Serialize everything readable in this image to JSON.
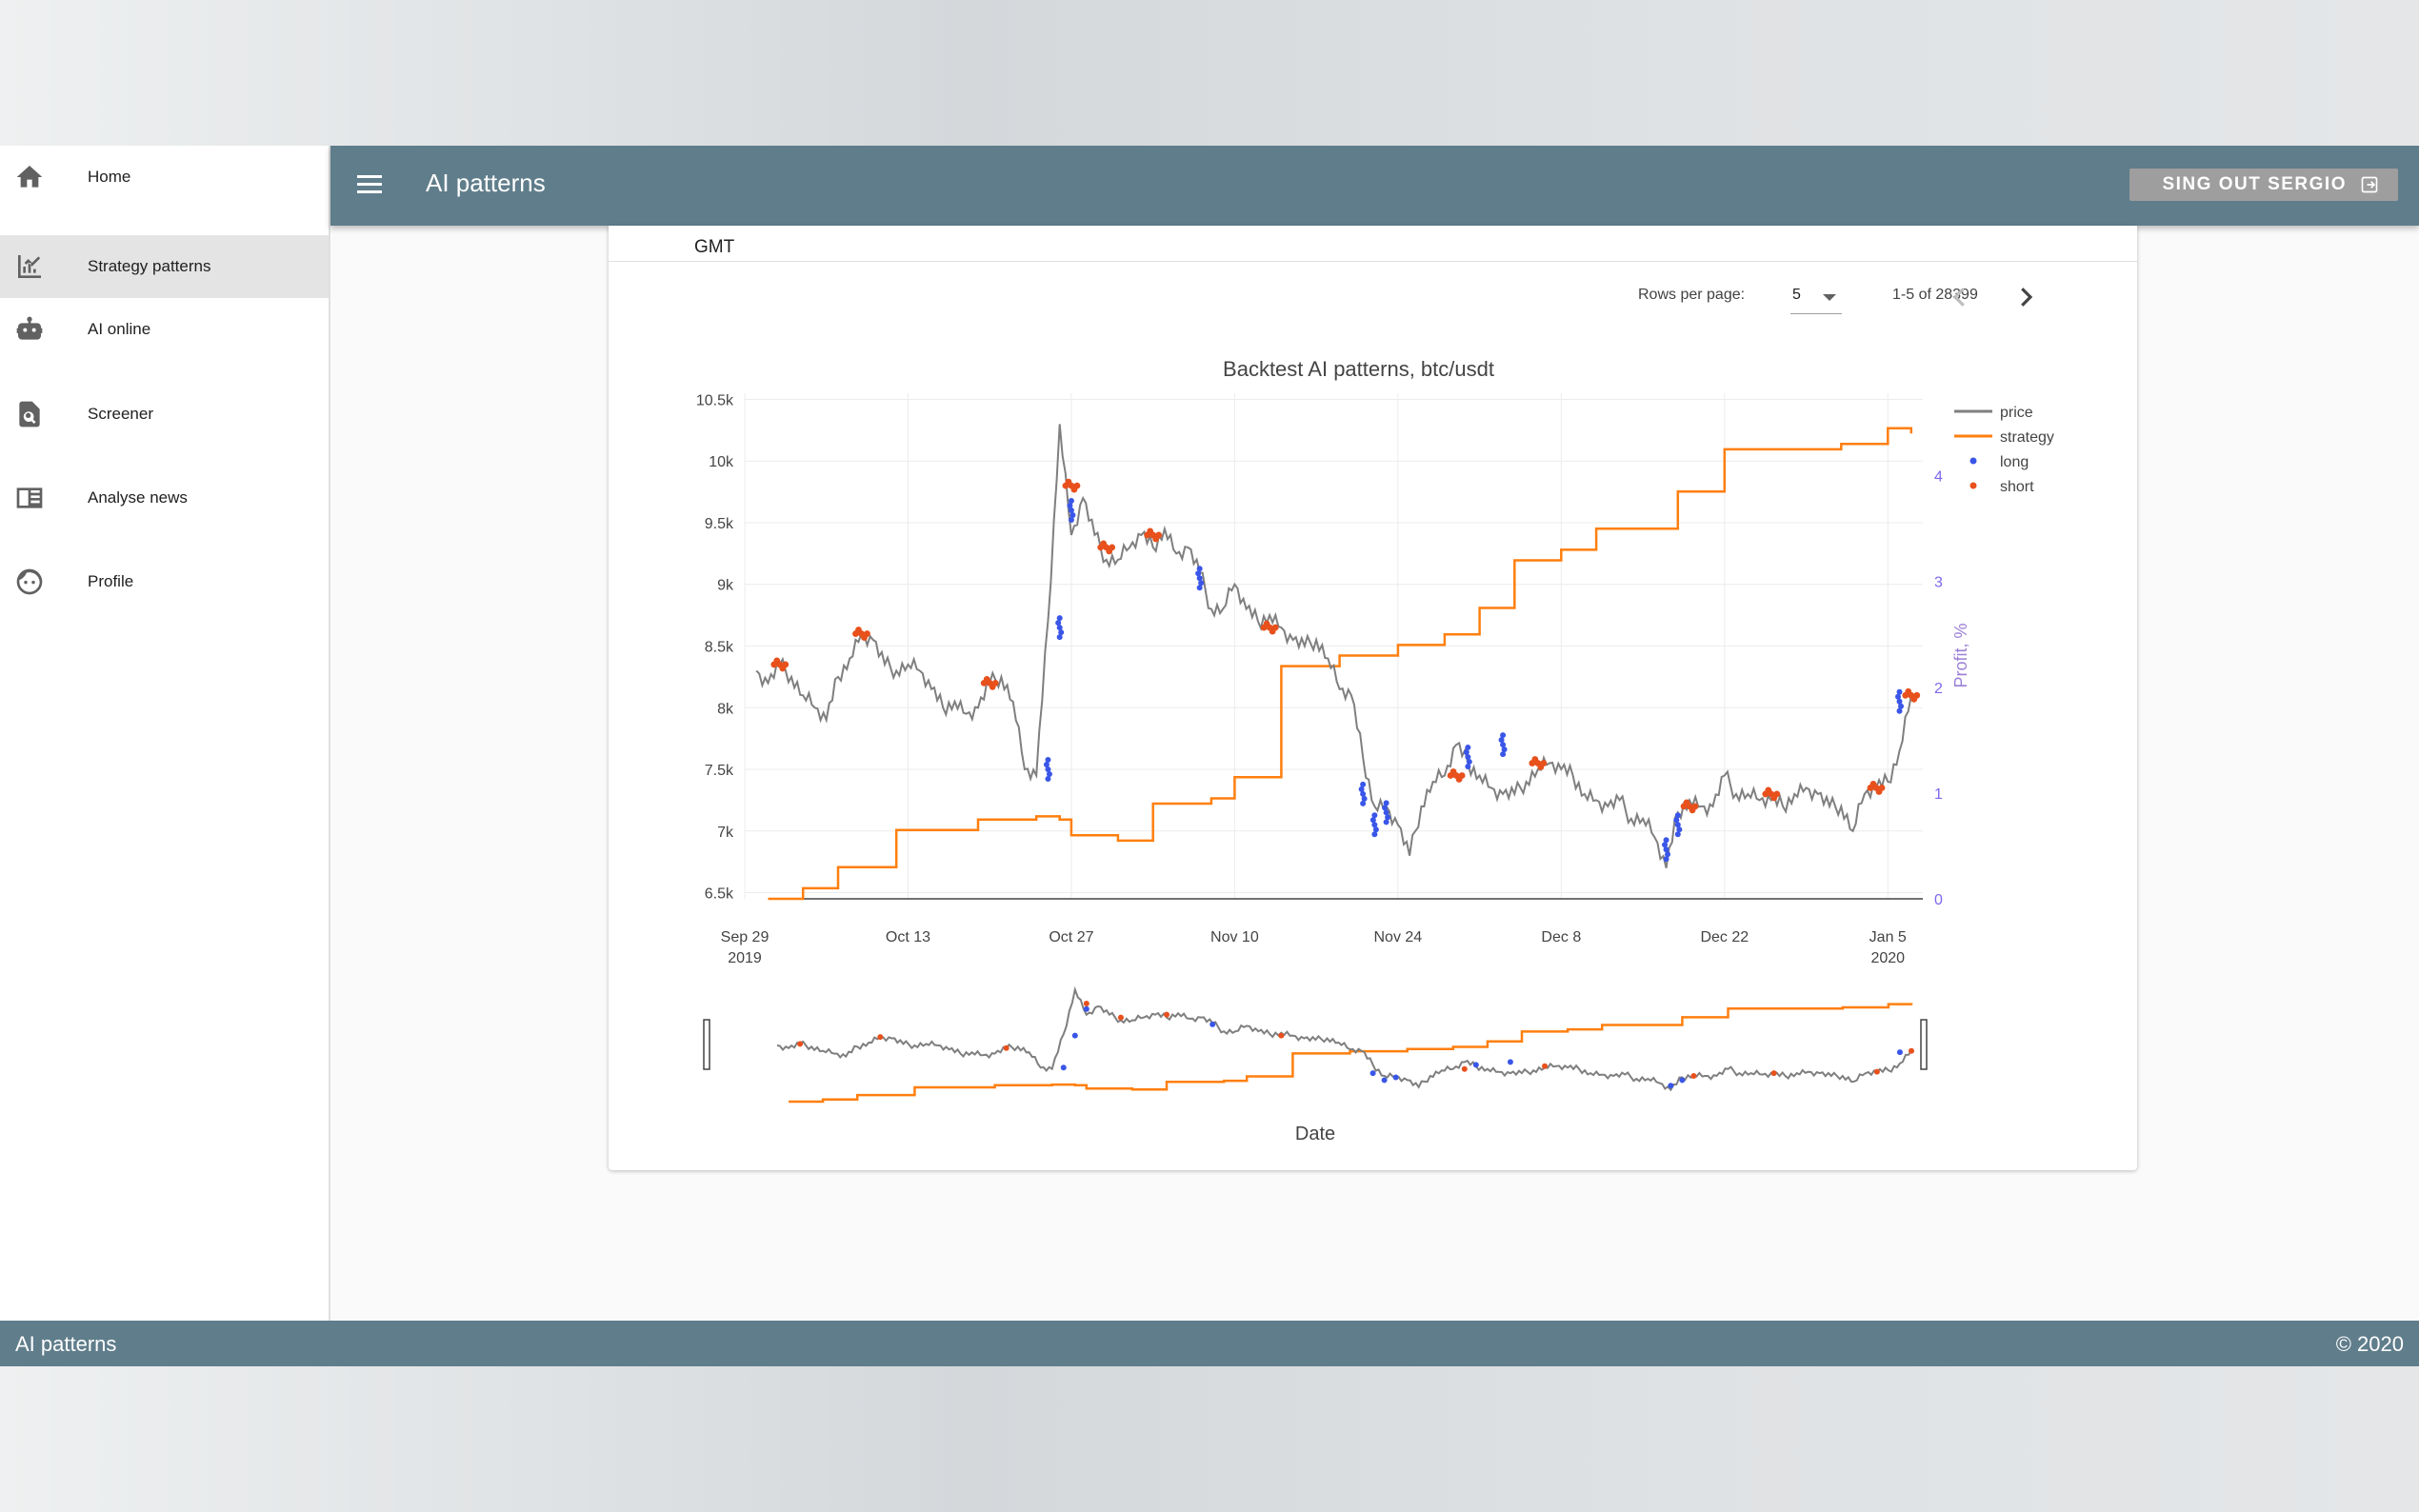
{
  "app": {
    "title": "AI patterns",
    "signout_label": "SING OUT SERGIO",
    "footer_left": "AI patterns",
    "footer_right": "© 2020",
    "header_color": "#607d8b"
  },
  "sidebar": {
    "items": [
      {
        "label": "Home",
        "icon": "home-icon",
        "active": false
      },
      {
        "label": "Strategy patterns",
        "icon": "chart-line-icon",
        "active": true
      },
      {
        "label": "AI online",
        "icon": "robot-icon",
        "active": false
      },
      {
        "label": "Screener",
        "icon": "file-search-icon",
        "active": false
      },
      {
        "label": "Analyse news",
        "icon": "newspaper-icon",
        "active": false
      },
      {
        "label": "Profile",
        "icon": "face-icon",
        "active": false
      }
    ]
  },
  "table": {
    "column_label": "GMT",
    "rows_per_page_label": "Rows per page:",
    "rows_per_page_value": "5",
    "range_label": "1-5 of 28399"
  },
  "chart_data": {
    "type": "line",
    "title": "Backtest AI patterns, btc/usdt",
    "xlabel": "Date",
    "ylabel": "",
    "y2label": "Profit, %",
    "x_tick_labels": [
      {
        "main": "Sep 29",
        "sub": "2019"
      },
      {
        "main": "Oct 13",
        "sub": ""
      },
      {
        "main": "Oct 27",
        "sub": ""
      },
      {
        "main": "Nov 10",
        "sub": ""
      },
      {
        "main": "Nov 24",
        "sub": ""
      },
      {
        "main": "Dec 8",
        "sub": ""
      },
      {
        "main": "Dec 22",
        "sub": ""
      },
      {
        "main": "Jan 5",
        "sub": "2020"
      }
    ],
    "x_range": [
      "2019-09-29",
      "2020-01-08"
    ],
    "y_tick_labels": [
      "6.5k",
      "7k",
      "7.5k",
      "8k",
      "8.5k",
      "9k",
      "9.5k",
      "10k",
      "10.5k"
    ],
    "y_ticks": [
      6500,
      7000,
      7500,
      8000,
      8500,
      9000,
      9500,
      10000,
      10500
    ],
    "ylim": [
      6450,
      10550
    ],
    "y2_ticks": [
      0,
      1,
      2,
      3,
      4
    ],
    "y2_tick_labels": [
      "0",
      "1",
      "2",
      "3",
      "4"
    ],
    "y2lim": [
      0,
      4.78
    ],
    "grid": true,
    "legend_position": "top-right",
    "range_slider": true,
    "series": [
      {
        "name": "price",
        "axis": "y",
        "color": "#7f7f7f",
        "x": [
          "2019-09-30",
          "2019-10-01",
          "2019-10-02",
          "2019-10-03",
          "2019-10-04",
          "2019-10-05",
          "2019-10-06",
          "2019-10-07",
          "2019-10-08",
          "2019-10-09",
          "2019-10-10",
          "2019-10-11",
          "2019-10-12",
          "2019-10-13",
          "2019-10-14",
          "2019-10-15",
          "2019-10-16",
          "2019-10-17",
          "2019-10-18",
          "2019-10-19",
          "2019-10-20",
          "2019-10-21",
          "2019-10-22",
          "2019-10-23",
          "2019-10-24",
          "2019-10-25",
          "2019-10-26",
          "2019-10-27",
          "2019-10-28",
          "2019-10-29",
          "2019-10-30",
          "2019-10-31",
          "2019-11-01",
          "2019-11-02",
          "2019-11-03",
          "2019-11-04",
          "2019-11-05",
          "2019-11-06",
          "2019-11-07",
          "2019-11-08",
          "2019-11-09",
          "2019-11-10",
          "2019-11-11",
          "2019-11-12",
          "2019-11-13",
          "2019-11-14",
          "2019-11-15",
          "2019-11-16",
          "2019-11-17",
          "2019-11-18",
          "2019-11-19",
          "2019-11-20",
          "2019-11-21",
          "2019-11-22",
          "2019-11-23",
          "2019-11-24",
          "2019-11-25",
          "2019-11-26",
          "2019-11-27",
          "2019-11-28",
          "2019-11-29",
          "2019-11-30",
          "2019-12-01",
          "2019-12-02",
          "2019-12-03",
          "2019-12-04",
          "2019-12-05",
          "2019-12-06",
          "2019-12-07",
          "2019-12-08",
          "2019-12-09",
          "2019-12-10",
          "2019-12-11",
          "2019-12-12",
          "2019-12-13",
          "2019-12-14",
          "2019-12-15",
          "2019-12-16",
          "2019-12-17",
          "2019-12-18",
          "2019-12-19",
          "2019-12-20",
          "2019-12-21",
          "2019-12-22",
          "2019-12-23",
          "2019-12-24",
          "2019-12-25",
          "2019-12-26",
          "2019-12-27",
          "2019-12-28",
          "2019-12-29",
          "2019-12-30",
          "2019-12-31",
          "2020-01-01",
          "2020-01-02",
          "2020-01-03",
          "2020-01-04",
          "2020-01-05",
          "2020-01-06",
          "2020-01-07"
        ],
        "values": [
          8300,
          8200,
          8350,
          8250,
          8100,
          8000,
          7900,
          8250,
          8400,
          8600,
          8550,
          8350,
          8300,
          8350,
          8300,
          8150,
          8000,
          8050,
          7950,
          8000,
          8200,
          8250,
          8050,
          7500,
          7450,
          8700,
          10300,
          9400,
          9700,
          9400,
          9200,
          9200,
          9300,
          9400,
          9300,
          9450,
          9250,
          9300,
          9100,
          8800,
          8800,
          9000,
          8800,
          8700,
          8750,
          8650,
          8550,
          8500,
          8550,
          8400,
          8150,
          8100,
          7600,
          7200,
          7200,
          7050,
          6800,
          7200,
          7400,
          7450,
          7700,
          7550,
          7450,
          7350,
          7300,
          7300,
          7400,
          7500,
          7550,
          7500,
          7450,
          7300,
          7250,
          7200,
          7250,
          7100,
          7100,
          6950,
          6700,
          7150,
          7250,
          7200,
          7200,
          7450,
          7300,
          7300,
          7250,
          7250,
          7200,
          7300,
          7350,
          7300,
          7200,
          7200,
          7000,
          7300,
          7350,
          7400,
          7650,
          8100
        ],
        "labels": []
      },
      {
        "name": "strategy",
        "axis": "y2",
        "color": "#ff7f0e",
        "x": [
          "2019-10-01",
          "2019-10-04",
          "2019-10-07",
          "2019-10-12",
          "2019-10-19",
          "2019-10-24",
          "2019-10-26",
          "2019-10-27",
          "2019-10-31",
          "2019-11-03",
          "2019-11-08",
          "2019-11-10",
          "2019-11-14",
          "2019-11-19",
          "2019-11-24",
          "2019-11-28",
          "2019-12-01",
          "2019-12-04",
          "2019-12-08",
          "2019-12-11",
          "2019-12-18",
          "2019-12-22",
          "2020-01-01",
          "2020-01-05",
          "2020-01-07"
        ],
        "values": [
          0,
          0.1,
          0.3,
          0.65,
          0.75,
          0.78,
          0.75,
          0.6,
          0.55,
          0.9,
          0.95,
          1.15,
          2.2,
          2.3,
          2.4,
          2.5,
          2.75,
          3.2,
          3.3,
          3.5,
          3.85,
          4.25,
          4.3,
          4.45,
          4.4
        ],
        "labels": []
      },
      {
        "name": "long",
        "axis": "y",
        "color": "#3a56e8",
        "x": [
          "2019-10-25",
          "2019-10-26",
          "2019-10-27",
          "2019-11-07",
          "2019-11-21",
          "2019-11-22",
          "2019-11-23",
          "2019-11-30",
          "2019-12-03",
          "2019-12-17",
          "2019-12-18",
          "2020-01-06"
        ],
        "values": [
          7500,
          8650,
          9600,
          9050,
          7300,
          7050,
          7150,
          7600,
          7700,
          6850,
          7050,
          8050
        ],
        "labels": []
      },
      {
        "name": "short",
        "axis": "y",
        "color": "#e8501c",
        "x": [
          "2019-10-02",
          "2019-10-09",
          "2019-10-20",
          "2019-10-27",
          "2019-10-30",
          "2019-11-03",
          "2019-11-13",
          "2019-11-29",
          "2019-12-06",
          "2019-12-19",
          "2019-12-26",
          "2020-01-04",
          "2020-01-07"
        ],
        "values": [
          8350,
          8600,
          8200,
          9800,
          9300,
          9400,
          8650,
          7450,
          7550,
          7200,
          7300,
          7350,
          8100
        ],
        "labels": []
      }
    ]
  }
}
